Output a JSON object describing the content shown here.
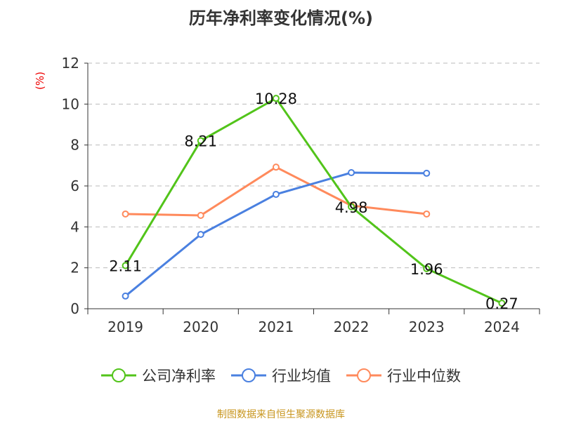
{
  "chart_data": {
    "type": "line",
    "title": "历年净利率变化情况(%)",
    "ylabel": "(%)",
    "categories": [
      "2019",
      "2020",
      "2021",
      "2022",
      "2023",
      "2024"
    ],
    "ylim": [
      0,
      12
    ],
    "yticks": [
      0,
      2,
      4,
      6,
      8,
      10,
      12
    ],
    "grid": true,
    "legend_position": "bottom",
    "series": [
      {
        "name": "公司净利率",
        "color": "#52c41a",
        "values": [
          2.11,
          8.21,
          10.28,
          4.98,
          1.96,
          0.27
        ],
        "labels": [
          "2.11",
          "8.21",
          "10.28",
          "4.98",
          "1.96",
          "0.27"
        ]
      },
      {
        "name": "行业均值",
        "color": "#4a80e0",
        "values": [
          0.62,
          3.63,
          5.59,
          6.65,
          6.62,
          null
        ]
      },
      {
        "name": "行业中位数",
        "color": "#ff8a5c",
        "values": [
          4.63,
          4.56,
          6.92,
          5.04,
          4.63,
          null
        ]
      }
    ]
  },
  "source": "制图数据来自恒生聚源数据库"
}
